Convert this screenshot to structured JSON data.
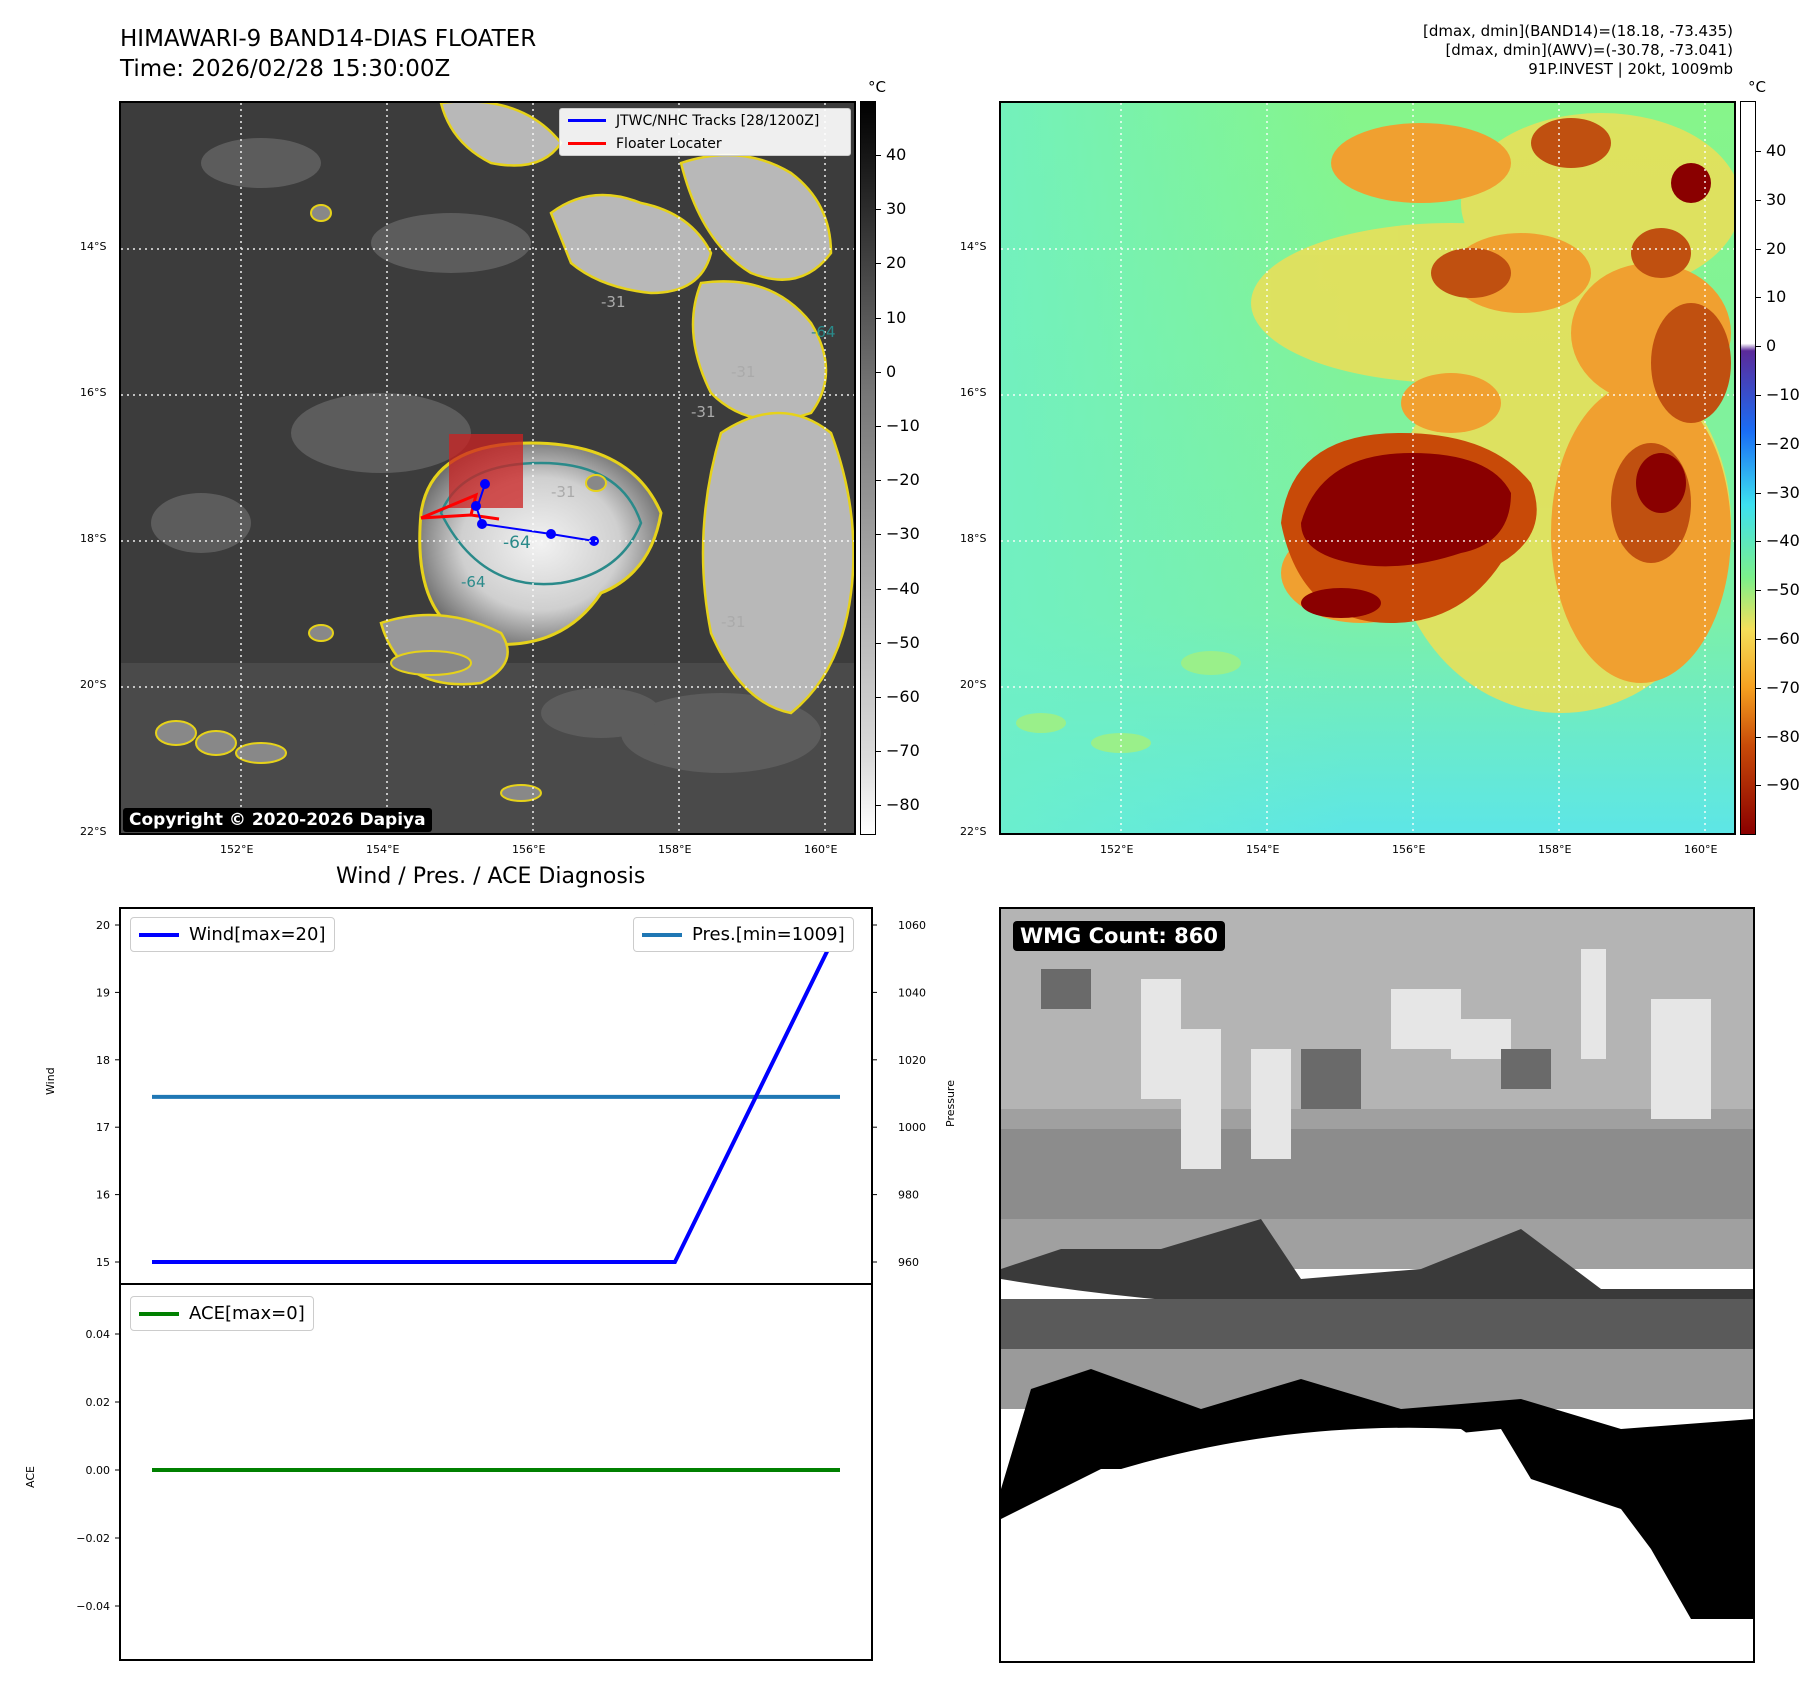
{
  "header": {
    "title_line1": "HIMAWARI-9 BAND14-DIAS FLOATER",
    "title_line2": "Time: 2026/02/28 15:30:00Z",
    "info_line1": "[dmax, dmin](BAND14)=(18.18, -73.435)",
    "info_line2": "[dmax, dmin](AWV)=(-30.78, -73.041)",
    "info_line3": "91P.INVEST | 20kt, 1009mb"
  },
  "map_axes": {
    "lat_labels": [
      "14°S",
      "16°S",
      "18°S",
      "20°S",
      "22°S"
    ],
    "lon_labels": [
      "152°E",
      "154°E",
      "156°E",
      "158°E",
      "160°E"
    ]
  },
  "panel_ir": {
    "colorbar_unit": "°C",
    "colorbar_ticks": [
      "40",
      "30",
      "20",
      "10",
      "0",
      "−10",
      "−20",
      "−30",
      "−40",
      "−50",
      "−60",
      "−70",
      "−80"
    ],
    "copyright": "Copyright © 2020-2026 Dapiya",
    "legend": [
      {
        "label": "JTWC/NHC Tracks [28/1200Z]",
        "color": "#0000ff"
      },
      {
        "label": "Floater Locater",
        "color": "#ff0000"
      }
    ],
    "contour_labels": [
      "-31",
      "-64",
      "-31",
      "-64",
      "-31",
      "-64",
      "-31",
      "-31"
    ]
  },
  "panel_awv": {
    "colorbar_unit": "°C",
    "colorbar_ticks": [
      "40",
      "30",
      "20",
      "10",
      "0",
      "−10",
      "−20",
      "−30",
      "−40",
      "−50",
      "−60",
      "−70",
      "−80",
      "−90"
    ]
  },
  "panel_diag": {
    "title": "Wind / Pres. / ACE Diagnosis",
    "wind_axis_label": "Wind",
    "pressure_axis_label": "Pressure",
    "ace_axis_label": "ACE",
    "wind_legend": "Wind[max=20]",
    "pres_legend": "Pres.[min=1009]",
    "ace_legend": "ACE[max=0]",
    "wind_ticks": [
      "20",
      "19",
      "18",
      "17",
      "16",
      "15"
    ],
    "pres_ticks": [
      "1060",
      "1040",
      "1020",
      "1000",
      "980",
      "960"
    ],
    "ace_ticks": [
      "0.04",
      "0.02",
      "0.00",
      "−0.02",
      "−0.04"
    ],
    "colors": {
      "wind": "#0000ff",
      "pressure": "#1f77b4",
      "ace": "#008000"
    }
  },
  "panel_wmg": {
    "label": "WMG Count: 860"
  },
  "chart_data": [
    {
      "type": "line",
      "title": "Wind / Pres. / ACE Diagnosis",
      "ylabel": "Wind",
      "ylim": [
        15,
        20
      ],
      "series": [
        {
          "name": "Wind[max=20]",
          "values": [
            15,
            15,
            20
          ]
        }
      ],
      "x": [
        0,
        0.76,
        1.0
      ]
    },
    {
      "type": "line",
      "ylabel": "Pressure",
      "ylim": [
        955,
        1065
      ],
      "series": [
        {
          "name": "Pres.[min=1009]",
          "values": [
            1009,
            1009
          ]
        }
      ],
      "x": [
        0,
        1.0
      ]
    },
    {
      "type": "line",
      "ylabel": "ACE",
      "ylim": [
        -0.055,
        0.055
      ],
      "series": [
        {
          "name": "ACE[max=0]",
          "values": [
            0,
            0
          ]
        }
      ],
      "x": [
        0,
        1.0
      ]
    }
  ]
}
